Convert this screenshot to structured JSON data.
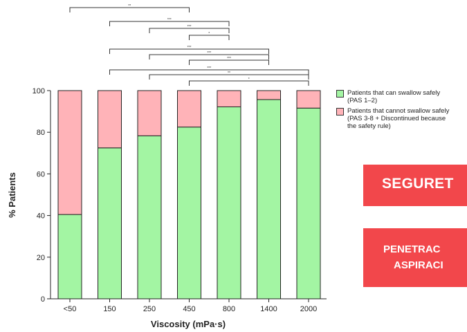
{
  "chart_data": {
    "type": "bar",
    "stacked": true,
    "categories": [
      "<50",
      "150",
      "250",
      "450",
      "800",
      "1400",
      "2000"
    ],
    "series": [
      {
        "name": "Patients that can swallow safely (PAS 1–2)",
        "color": "#a3f5a3",
        "values": [
          40.5,
          72.5,
          78.3,
          82.5,
          92.2,
          95.7,
          91.6
        ]
      },
      {
        "name": "Patients that cannot swallow safely (PAS 3-8 +  Discontinued because the safety rule)",
        "color": "#ffb3b8",
        "values": [
          59.5,
          27.5,
          21.7,
          17.5,
          7.8,
          4.3,
          8.4
        ]
      }
    ],
    "ylabel": "% Patients",
    "xlabel": "Viscosity (mPa·s)",
    "ylim": [
      0,
      100
    ],
    "yticks": [
      0,
      20,
      40,
      60,
      80,
      100
    ],
    "legend_position": "right",
    "significance_brackets": [
      {
        "from": "<50",
        "to": "450",
        "label": "**"
      },
      {
        "from": "150",
        "to": "800",
        "label": "***"
      },
      {
        "from": "250",
        "to": "800",
        "label": "***"
      },
      {
        "from": "450",
        "to": "800",
        "label": "*"
      },
      {
        "from": "150",
        "to": "1400",
        "label": "***"
      },
      {
        "from": "250",
        "to": "1400",
        "label": "***"
      },
      {
        "from": "450",
        "to": "1400",
        "label": "***"
      },
      {
        "from": "150",
        "to": "2000",
        "label": "***"
      },
      {
        "from": "250",
        "to": "2000",
        "label": "**"
      },
      {
        "from": "450",
        "to": "2000",
        "label": "*"
      }
    ]
  },
  "legend": {
    "safe_label": "Patients that can swallow safely\n(PAS 1–2)",
    "unsafe_label": "Patients that cannot swallow safely\n(PAS 3-8 +  Discontinued because\nthe safety rule)"
  },
  "overlays": {
    "banner_1": "SEGURET",
    "banner_2_line1": "PENETRAC",
    "banner_2_line2": "ASPIRACI"
  }
}
